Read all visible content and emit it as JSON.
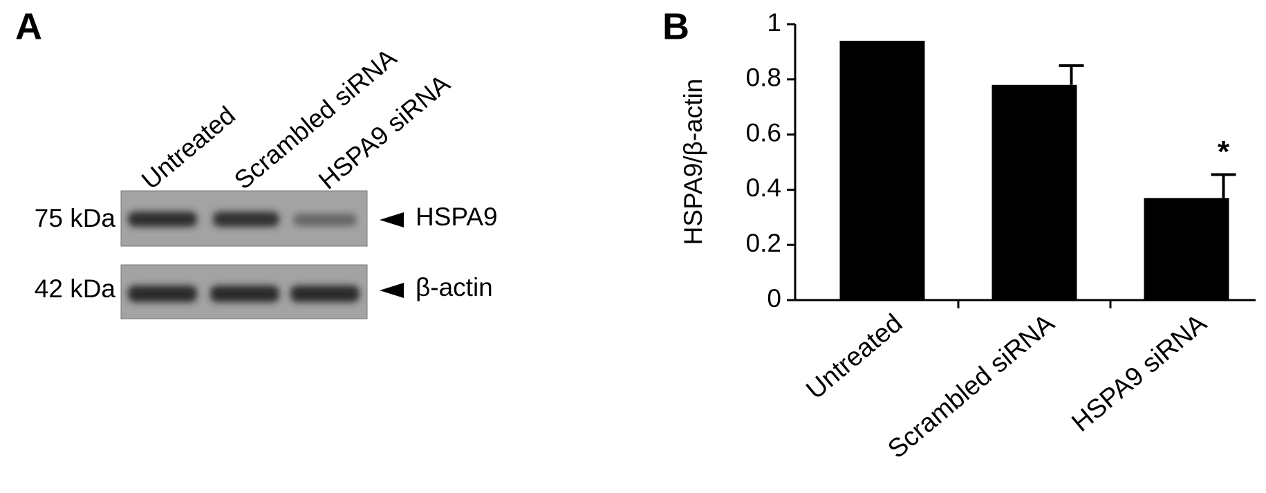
{
  "blot": {
    "panel_label": "A",
    "lanes": [
      "Untreated",
      "Scrambled siRNA",
      "HSPA9 siRNA"
    ],
    "rows": [
      {
        "size": "75 kDa",
        "protein": "HSPA9"
      },
      {
        "size": "42 kDa",
        "protein": "β-actin"
      }
    ]
  },
  "chart_data": {
    "type": "bar",
    "panel_label": "B",
    "y_label": "HSPA9/β-actin",
    "categories": [
      "Untreated",
      "Scrambled siRNA",
      "HSPA9 siRNA"
    ],
    "values": [
      0.94,
      0.78,
      0.37
    ],
    "errors": [
      null,
      0.07,
      0.085
    ],
    "significance": [
      null,
      null,
      "*"
    ],
    "color": "#000000",
    "ylim": [
      0,
      1
    ],
    "yticks": [
      0,
      0.2,
      0.4,
      0.6,
      0.8,
      1
    ],
    "grid": false
  }
}
